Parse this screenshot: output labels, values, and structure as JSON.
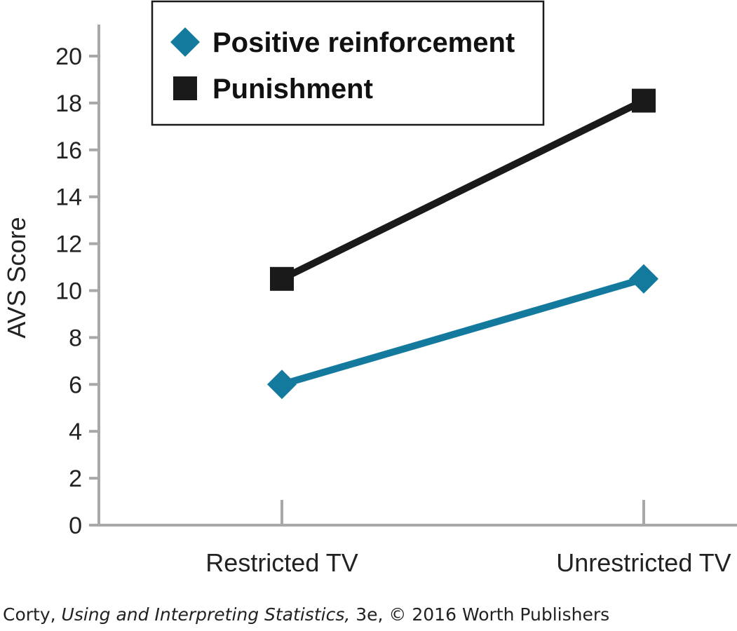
{
  "chart_data": {
    "type": "line",
    "title": "",
    "xlabel": "",
    "ylabel": "AVS Score",
    "categories": [
      "Restricted TV",
      "Unrestricted TV"
    ],
    "ylim": [
      0,
      20
    ],
    "yticks": [
      0,
      2,
      4,
      6,
      8,
      10,
      12,
      14,
      16,
      18,
      20
    ],
    "grid": false,
    "legend_position": "top",
    "series": [
      {
        "name": "Positive reinforcement",
        "values": [
          6.0,
          10.5
        ],
        "color": "#137a9e",
        "marker": "diamond"
      },
      {
        "name": "Punishment",
        "values": [
          10.5,
          18.1
        ],
        "color": "#1a1a1a",
        "marker": "square"
      }
    ]
  },
  "credit": {
    "author": "Corty, ",
    "book": "Using and Interpreting Statistics,",
    "rest": " 3e, © 2016 Worth Publishers"
  }
}
